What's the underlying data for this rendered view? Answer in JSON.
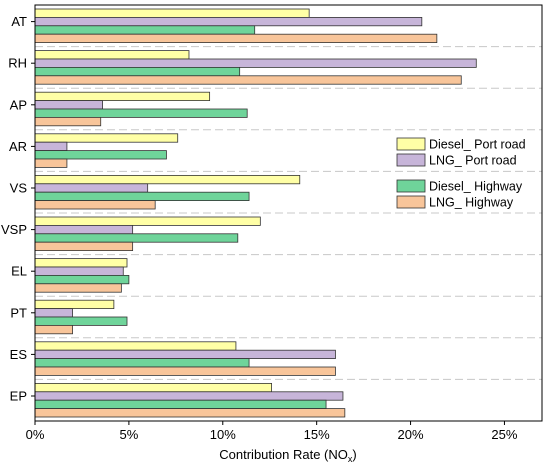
{
  "chart_data": {
    "type": "bar",
    "orientation": "horizontal",
    "categories": [
      "AT",
      "RH",
      "AP",
      "AR",
      "VS",
      "VSP",
      "EL",
      "PT",
      "ES",
      "EP"
    ],
    "series": [
      {
        "name": "Diesel_ Port road",
        "color": "#ffffa6",
        "values": [
          14.6,
          8.2,
          9.3,
          7.6,
          14.1,
          12.0,
          4.9,
          4.2,
          10.7,
          12.6
        ]
      },
      {
        "name": "LNG_ Port road",
        "color": "#c7b5d9",
        "values": [
          20.6,
          23.5,
          3.6,
          1.7,
          6.0,
          5.2,
          4.7,
          2.0,
          16.0,
          16.4
        ]
      },
      {
        "name": "Diesel_ Highway",
        "color": "#6fd49a",
        "values": [
          11.7,
          10.9,
          11.3,
          7.0,
          11.4,
          10.8,
          5.0,
          4.9,
          11.4,
          15.5
        ]
      },
      {
        "name": "LNG_ Highway",
        "color": "#f8c59a",
        "values": [
          21.4,
          22.7,
          3.5,
          1.7,
          6.4,
          5.2,
          4.6,
          2.0,
          16.0,
          16.5
        ]
      }
    ],
    "xlim": [
      0,
      27
    ],
    "x_ticks": [
      0,
      5,
      10,
      15,
      20,
      25
    ],
    "x_tick_labels": [
      "0%",
      "5%",
      "10%",
      "15%",
      "20%",
      "25%"
    ],
    "xlabel_main": "Contribution Rate (NO",
    "xlabel_sub": "x",
    "xlabel_close": ")",
    "legend_position": "right",
    "grid": "dashed category separators",
    "bar_edge_color": "#333333",
    "separator_color": "#c8c8c8"
  }
}
